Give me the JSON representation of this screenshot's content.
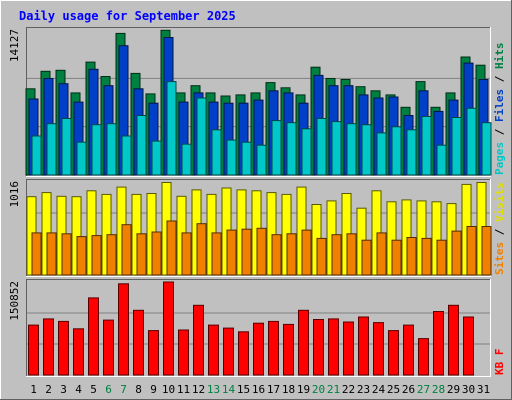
{
  "chart_data": {
    "type": "bar",
    "title": "Daily usage for September 2025",
    "categories": [
      "1",
      "2",
      "3",
      "4",
      "5",
      "6",
      "7",
      "8",
      "9",
      "10",
      "11",
      "12",
      "13",
      "14",
      "15",
      "16",
      "17",
      "18",
      "19",
      "20",
      "21",
      "22",
      "23",
      "24",
      "25",
      "26",
      "27",
      "28",
      "29",
      "30",
      "31"
    ],
    "weekend_days": [
      "6",
      "7",
      "13",
      "14",
      "20",
      "21",
      "27",
      "28"
    ],
    "panels": [
      {
        "name": "hits-files-pages",
        "ymax_label": "14127",
        "ymax": 14127,
        "axis_labels": [
          {
            "text": "Pages",
            "color": "#00c8c8"
          },
          {
            "text": "Files",
            "color": "#0040c8"
          },
          {
            "text": "Hits",
            "color": "#008040"
          }
        ],
        "series": [
          {
            "name": "Hits",
            "color": "#008040",
            "values": [
              8400,
              10100,
              10200,
              8000,
              11000,
              9600,
              13800,
              9900,
              7900,
              14100,
              8000,
              8700,
              8000,
              7700,
              7800,
              8000,
              9000,
              8500,
              7800,
              10500,
              9400,
              9300,
              8600,
              8200,
              7800,
              6600,
              9100,
              6600,
              8000,
              11500,
              10700
            ]
          },
          {
            "name": "Files",
            "color": "#0040c8",
            "values": [
              7400,
              9400,
              8900,
              7100,
              10300,
              8700,
              12600,
              8400,
              7000,
              13400,
              7100,
              8000,
              7100,
              7000,
              7000,
              7300,
              8200,
              8000,
              7000,
              9700,
              8700,
              8700,
              7800,
              7500,
              7600,
              5800,
              8200,
              6200,
              7300,
              10900,
              9300
            ]
          },
          {
            "name": "Pages",
            "color": "#00c8c8",
            "values": [
              3800,
              5000,
              5500,
              3200,
              4900,
              5000,
              3800,
              5800,
              3300,
              9100,
              3000,
              7500,
              4400,
              3400,
              3200,
              2900,
              5300,
              5100,
              4500,
              5500,
              5200,
              5000,
              4900,
              4100,
              4700,
              4400,
              5700,
              2900,
              5600,
              6500,
              5100
            ]
          }
        ]
      },
      {
        "name": "visits-sites",
        "ymax_label": "1016",
        "ymax": 1016,
        "axis_labels": [
          {
            "text": "Sites",
            "color": "#f08000"
          },
          {
            "text": "Visits",
            "color": "#e0e000"
          }
        ],
        "series": [
          {
            "name": "Visits",
            "color": "#ffff00",
            "values": [
              855,
              900,
              860,
              855,
              920,
              880,
              960,
              880,
              890,
              1010,
              860,
              930,
              880,
              950,
              930,
              920,
              900,
              880,
              960,
              770,
              810,
              890,
              730,
              920,
              800,
              820,
              810,
              800,
              780,
              990,
              1010
            ]
          },
          {
            "name": "Sites",
            "color": "#f08000",
            "values": [
              460,
              460,
              450,
              420,
              430,
              440,
              550,
              450,
              470,
              590,
              460,
              560,
              460,
              490,
              500,
              510,
              440,
              450,
              490,
              400,
              440,
              450,
              380,
              460,
              380,
              410,
              400,
              380,
              480,
              530,
              530
            ]
          }
        ]
      },
      {
        "name": "kbytes",
        "ymax_label": "150852",
        "ymax": 150852,
        "axis_labels": [
          {
            "text": "KB F",
            "color": "#ff0000"
          }
        ],
        "series": [
          {
            "name": "KB F",
            "color": "#ff0000",
            "values": [
              81000,
              91000,
              87000,
              75000,
              125000,
              89000,
              148000,
              105000,
              72000,
              150852,
              73000,
              113000,
              81000,
              76000,
              70000,
              84000,
              87000,
              82000,
              105000,
              90000,
              91000,
              86000,
              94000,
              85000,
              72000,
              81000,
              59000,
              103000,
              113000,
              94000,
              0
            ]
          }
        ]
      }
    ]
  },
  "colors": {
    "background": "#c0c0c0",
    "plot_background": "#c0c0c0",
    "grid": "#808080",
    "title": "#0000ff",
    "tick_label": "#000000",
    "weekend_tick_label": "#008040"
  }
}
